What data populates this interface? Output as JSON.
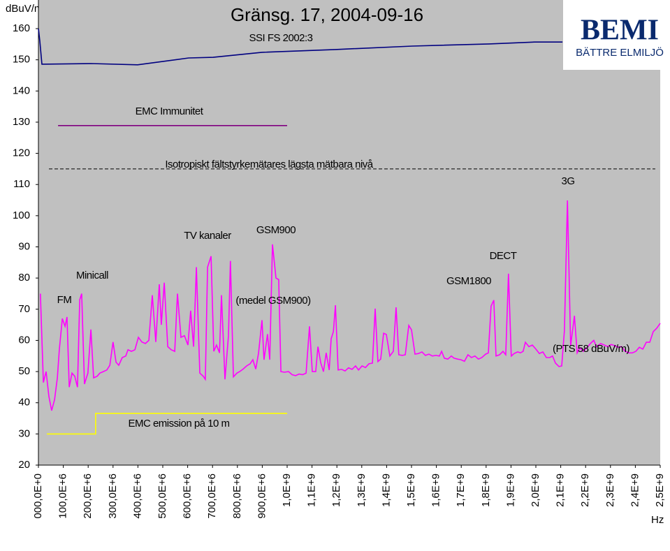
{
  "chart_data": {
    "type": "line",
    "title": "Gränsg. 17, 2004-09-16",
    "ylabel": "dBuV/m",
    "xlabel": "Hz",
    "logo": {
      "title": "BEMI",
      "subtitle": "BÄTTRE ELMILJÖ"
    },
    "ylim": [
      20,
      160
    ],
    "yticks": [
      20,
      30,
      40,
      50,
      60,
      70,
      80,
      90,
      100,
      110,
      120,
      130,
      140,
      150,
      160
    ],
    "xlim": [
      0,
      2500000000.0
    ],
    "xticks": [
      {
        "value": 0,
        "label": "000,0E+0"
      },
      {
        "value": 100000000.0,
        "label": "100,0E+6"
      },
      {
        "value": 200000000.0,
        "label": "200,0E+6"
      },
      {
        "value": 300000000.0,
        "label": "300,0E+6"
      },
      {
        "value": 400000000.0,
        "label": "400,0E+6"
      },
      {
        "value": 500000000.0,
        "label": "500,0E+6"
      },
      {
        "value": 600000000.0,
        "label": "600,0E+6"
      },
      {
        "value": 700000000.0,
        "label": "700,0E+6"
      },
      {
        "value": 800000000.0,
        "label": "800,0E+6"
      },
      {
        "value": 900000000.0,
        "label": "900,0E+6"
      },
      {
        "value": 1000000000.0,
        "label": "1,0E+9"
      },
      {
        "value": 1100000000.0,
        "label": "1,1E+9"
      },
      {
        "value": 1200000000.0,
        "label": "1,2E+9"
      },
      {
        "value": 1300000000.0,
        "label": "1,3E+9"
      },
      {
        "value": 1400000000.0,
        "label": "1,4E+9"
      },
      {
        "value": 1500000000.0,
        "label": "1,5E+9"
      },
      {
        "value": 1600000000.0,
        "label": "1,6E+9"
      },
      {
        "value": 1700000000.0,
        "label": "1,7E+9"
      },
      {
        "value": 1800000000.0,
        "label": "1,8E+9"
      },
      {
        "value": 1900000000.0,
        "label": "1,9E+9"
      },
      {
        "value": 2000000000.0,
        "label": "2,0E+9"
      },
      {
        "value": 2100000000.0,
        "label": "2,1E+9"
      },
      {
        "value": 2200000000.0,
        "label": "2,2E+9"
      },
      {
        "value": 2300000000.0,
        "label": "2,3E+9"
      },
      {
        "value": 2400000000.0,
        "label": "2,4E+9"
      },
      {
        "value": 2500000000.0,
        "label": "2,5E+9"
      }
    ],
    "grid": false,
    "background": "#c0c0c0",
    "annotations": [
      "SSI FS 2002:3",
      "EMC Immunitet",
      "Isotropiskt fältstyrkemätares lägsta mätbara nivå",
      "3G",
      "TV kanaler",
      "GSM900",
      "DECT",
      "Minicall",
      "GSM1800",
      "FM",
      "(medel GSM900)",
      "(PTS 58 dBuV/m)",
      "EMC emission på 10 m"
    ],
    "series": [
      {
        "color": "#000080",
        "dash": false,
        "x": [
          0,
          5600000.0,
          14000000.0,
          211000000.0,
          399000000.0,
          604000000.0,
          702000000.0,
          899000000.0,
          1194000000.0,
          1503000000.0,
          1812000000.0,
          1994000000.0,
          2107000000.0
        ],
        "values": [
          160,
          156,
          148.6,
          148.8,
          148.4,
          150.6,
          150.8,
          152.4,
          153.3,
          154.4,
          155.1,
          155.7,
          155.7
        ]
      },
      {
        "color": "#800080",
        "dash": false,
        "x": [
          79000000.0,
          1000000000.0
        ],
        "values": [
          128.9,
          128.9
        ]
      },
      {
        "color": "#000000",
        "dash": true,
        "x": [
          42000000.0,
          2480000000.0
        ],
        "values": [
          115,
          115
        ]
      },
      {
        "color": "#ffff00",
        "dash": false,
        "x": [
          34000000.0,
          230000000.0,
          230000000.0,
          1000000000.0
        ],
        "values": [
          30,
          30,
          36.6,
          36.6
        ]
      },
      {
        "color": "#ff00ff",
        "dash": false,
        "x": [
          8000000.0,
          20000000.0,
          31000000.0,
          42000000.0,
          53000000.0,
          65000000.0,
          76000000.0,
          84000000.0,
          96000000.0,
          107000000.0,
          115000000.0,
          124000000.0,
          135000000.0,
          146000000.0,
          157000000.0,
          166000000.0,
          174000000.0,
          185000000.0,
          199000000.0,
          211000000.0,
          222000000.0,
          236000000.0,
          247000000.0,
          261000000.0,
          275000000.0,
          287000000.0,
          300000000.0,
          312000000.0,
          323000000.0,
          337000000.0,
          351000000.0,
          360000000.0,
          374000000.0,
          388000000.0,
          402000000.0,
          416000000.0,
          430000000.0,
          444000000.0,
          458000000.0,
          472000000.0,
          486000000.0,
          494000000.0,
          506000000.0,
          520000000.0,
          534000000.0,
          548000000.0,
          559000000.0,
          573000000.0,
          587000000.0,
          601000000.0,
          612000000.0,
          624000000.0,
          635000000.0,
          649000000.0,
          663000000.0,
          671000000.0,
          680000000.0,
          694000000.0,
          705000000.0,
          716000000.0,
          728000000.0,
          736000000.0,
          750000000.0,
          764000000.0,
          772000000.0,
          784000000.0,
          798000000.0,
          809000000.0,
          823000000.0,
          837000000.0,
          851000000.0,
          862000000.0,
          874000000.0,
          885000000.0,
          899000000.0,
          907000000.0,
          921000000.0,
          930000000.0,
          941000000.0,
          955000000.0,
          966000000.0,
          975000000.0,
          989000000.0,
          1006000000.0,
          1020000000.0,
          1034000000.0,
          1048000000.0,
          1062000000.0,
          1076000000.0,
          1090000000.0,
          1101000000.0,
          1115000000.0,
          1124000000.0,
          1135000000.0,
          1146000000.0,
          1157000000.0,
          1169000000.0,
          1177000000.0,
          1186000000.0,
          1194000000.0,
          1205000000.0,
          1219000000.0,
          1233000000.0,
          1247000000.0,
          1261000000.0,
          1275000000.0,
          1287000000.0,
          1301000000.0,
          1315000000.0,
          1329000000.0,
          1343000000.0,
          1354000000.0,
          1365000000.0,
          1376000000.0,
          1388000000.0,
          1399000000.0,
          1413000000.0,
          1427000000.0,
          1438000000.0,
          1449000000.0,
          1463000000.0,
          1475000000.0,
          1489000000.0,
          1500000000.0,
          1514000000.0,
          1528000000.0,
          1542000000.0,
          1556000000.0,
          1570000000.0,
          1584000000.0,
          1598000000.0,
          1612000000.0,
          1621000000.0,
          1632000000.0,
          1646000000.0,
          1660000000.0,
          1671000000.0,
          1685000000.0,
          1699000000.0,
          1713000000.0,
          1727000000.0,
          1741000000.0,
          1755000000.0,
          1769000000.0,
          1783000000.0,
          1798000000.0,
          1809000000.0,
          1820000000.0,
          1831000000.0,
          1840000000.0,
          1854000000.0,
          1868000000.0,
          1879000000.0,
          1890000000.0,
          1901000000.0,
          1913000000.0,
          1927000000.0,
          1938000000.0,
          1949000000.0,
          1958000000.0,
          1972000000.0,
          1986000000.0,
          2000000000.0,
          2014000000.0,
          2028000000.0,
          2042000000.0,
          2056000000.0,
          2067000000.0,
          2079000000.0,
          2093000000.0,
          2104000000.0,
          2115000000.0,
          2127000000.0,
          2140000000.0,
          2155000000.0,
          2166000000.0,
          2177000000.0,
          2191000000.0,
          2205000000.0,
          2219000000.0,
          2233000000.0,
          2244000000.0,
          2261000000.0,
          2275000000.0,
          2289000000.0,
          2303000000.0,
          2317000000.0,
          2331000000.0,
          2345000000.0,
          2359000000.0,
          2374000000.0,
          2388000000.0,
          2402000000.0,
          2416000000.0,
          2430000000.0,
          2444000000.0,
          2458000000.0,
          2472000000.0,
          2486000000.0,
          2500000000.0
        ],
        "values": [
          75,
          46.5,
          50,
          42,
          37.5,
          41,
          48,
          57,
          67,
          64.5,
          67.5,
          45,
          49.5,
          48.5,
          45,
          73,
          75,
          46,
          49.5,
          63.5,
          48,
          48.5,
          49.5,
          50,
          50.5,
          52,
          59.5,
          53,
          52,
          54.5,
          55,
          57,
          56.5,
          57,
          61,
          59.5,
          59,
          60,
          74.5,
          59.5,
          78,
          65,
          78.5,
          58,
          57,
          56.5,
          75,
          61,
          61.5,
          58.5,
          69.5,
          58,
          83.5,
          49.5,
          48.5,
          47.5,
          83.5,
          87,
          56.5,
          58.5,
          56,
          74.5,
          47.5,
          61.5,
          85.5,
          48.3,
          49.5,
          50,
          50.8,
          51.8,
          52.5,
          53.8,
          50.8,
          56,
          66.5,
          53.8,
          62,
          53.8,
          90.8,
          80,
          79.5,
          50,
          49.8,
          50,
          49,
          48.7,
          49.2,
          49,
          49.5,
          64.5,
          50,
          50,
          58,
          52.8,
          50,
          56,
          50.5,
          60.5,
          62.8,
          71.3,
          50.5,
          50.7,
          50.2,
          51.2,
          50.7,
          51.8,
          50.5,
          51.8,
          51.3,
          52.5,
          52.7,
          70.2,
          53.2,
          54,
          62.3,
          61.9,
          55,
          56.5,
          70.6,
          55.4,
          55.2,
          55.4,
          64.8,
          63.4,
          55.6,
          55.8,
          56.3,
          55.2,
          55.6,
          55,
          55.2,
          55,
          56.5,
          54.3,
          54,
          55,
          54.3,
          54,
          53.8,
          53.3,
          55.4,
          54.5,
          55,
          54,
          54.5,
          55.6,
          56,
          71,
          72.9,
          55,
          55.4,
          56.5,
          55.4,
          81.4,
          55,
          55.8,
          56.3,
          56,
          56.5,
          59.4,
          58,
          58.5,
          57.2,
          55.8,
          56.3,
          54.5,
          54.5,
          55,
          52.7,
          51.6,
          51.8,
          63.2,
          104.9,
          58.3,
          67.9,
          56,
          57.6,
          56.5,
          57.6,
          59,
          60,
          58,
          59,
          58.5,
          58,
          58.7,
          58.3,
          57.8,
          58,
          56.5,
          56,
          56,
          56.5,
          57.8,
          57.2,
          59.4,
          59.4,
          62.8,
          63.9,
          65.5
        ]
      }
    ]
  }
}
